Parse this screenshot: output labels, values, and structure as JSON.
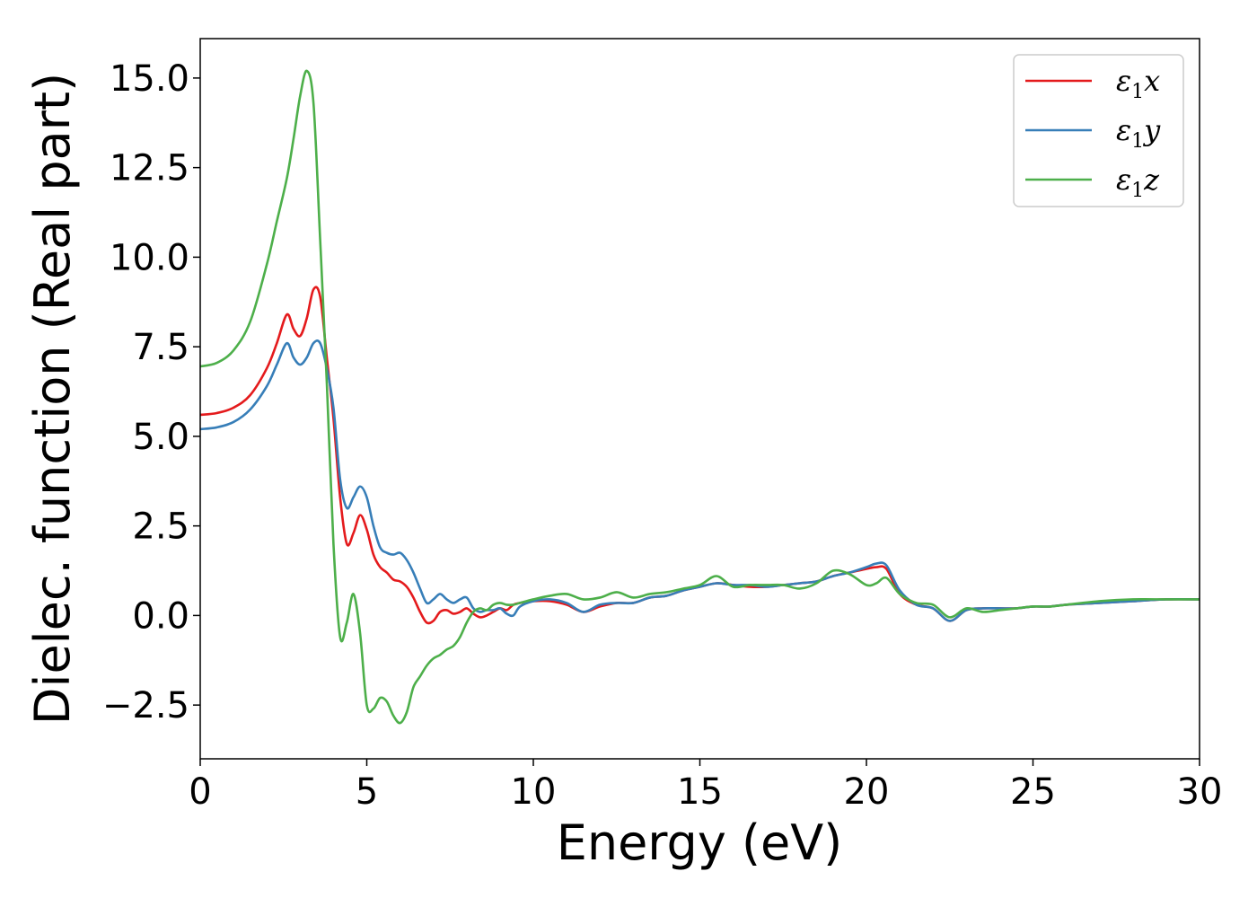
{
  "chart_data": {
    "type": "line",
    "xlabel": "Energy (eV)",
    "ylabel": "Dielec. function (Real part)",
    "xlim": [
      0,
      30
    ],
    "ylim": [
      -4.0,
      16.1
    ],
    "xticks": [
      0,
      5,
      10,
      15,
      20,
      25,
      30
    ],
    "xtick_labels": [
      "0",
      "5",
      "10",
      "15",
      "20",
      "25",
      "30"
    ],
    "yticks": [
      -2.5,
      0.0,
      2.5,
      5.0,
      7.5,
      10.0,
      12.5,
      15.0
    ],
    "ytick_labels": [
      "−2.5",
      "0.0",
      "2.5",
      "5.0",
      "7.5",
      "10.0",
      "12.5",
      "15.0"
    ],
    "grid": false,
    "legend_position": "top-right",
    "series": [
      {
        "name": "ε₁x",
        "legend_base": "ε",
        "legend_sub": "1",
        "legend_var": "x",
        "color": "#e41a1c",
        "x": [
          0,
          0.5,
          1.0,
          1.5,
          2.0,
          2.3,
          2.6,
          2.8,
          3.0,
          3.2,
          3.4,
          3.6,
          3.8,
          4.0,
          4.2,
          4.4,
          4.6,
          4.8,
          5.0,
          5.2,
          5.4,
          5.6,
          5.8,
          6.0,
          6.2,
          6.4,
          6.6,
          6.8,
          7.0,
          7.2,
          7.4,
          7.6,
          7.8,
          8.0,
          8.2,
          8.4,
          8.6,
          8.8,
          9.0,
          9.2,
          9.4,
          9.6,
          10.0,
          10.5,
          11.0,
          11.5,
          12.0,
          12.5,
          13.0,
          13.5,
          14.0,
          14.5,
          15.0,
          15.5,
          16.0,
          16.5,
          17.0,
          17.5,
          18.0,
          18.5,
          19.0,
          19.5,
          20.0,
          20.3,
          20.6,
          21.0,
          21.5,
          22.0,
          22.5,
          23.0,
          23.5,
          24.0,
          24.5,
          25.0,
          25.5,
          26.0,
          27.0,
          28.0,
          29.0,
          30.0
        ],
        "y": [
          5.6,
          5.65,
          5.8,
          6.15,
          6.9,
          7.6,
          8.4,
          8.0,
          7.8,
          8.3,
          9.1,
          8.9,
          7.2,
          5.5,
          3.3,
          2.0,
          2.3,
          2.8,
          2.4,
          1.7,
          1.35,
          1.2,
          1.0,
          0.95,
          0.8,
          0.5,
          0.1,
          -0.2,
          -0.15,
          0.1,
          0.15,
          0.05,
          0.1,
          0.2,
          0.05,
          -0.05,
          0.0,
          0.1,
          0.2,
          0.15,
          0.3,
          0.35,
          0.4,
          0.4,
          0.3,
          0.1,
          0.25,
          0.35,
          0.35,
          0.5,
          0.55,
          0.7,
          0.8,
          0.9,
          0.85,
          0.8,
          0.8,
          0.85,
          0.9,
          0.95,
          1.1,
          1.2,
          1.3,
          1.35,
          1.3,
          0.6,
          0.3,
          0.2,
          -0.15,
          0.15,
          0.2,
          0.2,
          0.2,
          0.25,
          0.25,
          0.3,
          0.35,
          0.4,
          0.45,
          0.45
        ]
      },
      {
        "name": "ε₁y",
        "legend_base": "ε",
        "legend_sub": "1",
        "legend_var": "y",
        "color": "#377eb8",
        "x": [
          0,
          0.5,
          1.0,
          1.5,
          2.0,
          2.3,
          2.6,
          2.8,
          3.0,
          3.2,
          3.4,
          3.6,
          3.8,
          4.0,
          4.2,
          4.4,
          4.6,
          4.8,
          5.0,
          5.2,
          5.4,
          5.6,
          5.8,
          6.0,
          6.2,
          6.4,
          6.6,
          6.8,
          7.0,
          7.2,
          7.4,
          7.6,
          7.8,
          8.0,
          8.2,
          8.4,
          8.6,
          8.8,
          9.0,
          9.2,
          9.4,
          9.6,
          10.0,
          10.5,
          11.0,
          11.5,
          12.0,
          12.5,
          13.0,
          13.5,
          14.0,
          14.5,
          15.0,
          15.5,
          16.0,
          16.5,
          17.0,
          17.5,
          18.0,
          18.5,
          19.0,
          19.5,
          20.0,
          20.3,
          20.6,
          21.0,
          21.5,
          22.0,
          22.5,
          23.0,
          23.5,
          24.0,
          24.5,
          25.0,
          25.5,
          26.0,
          27.0,
          28.0,
          29.0,
          30.0
        ],
        "y": [
          5.2,
          5.25,
          5.4,
          5.75,
          6.4,
          7.0,
          7.6,
          7.2,
          7.0,
          7.2,
          7.6,
          7.6,
          6.9,
          5.8,
          3.8,
          3.0,
          3.3,
          3.6,
          3.3,
          2.5,
          1.9,
          1.75,
          1.7,
          1.75,
          1.55,
          1.2,
          0.75,
          0.35,
          0.45,
          0.6,
          0.45,
          0.35,
          0.45,
          0.5,
          0.2,
          0.1,
          0.15,
          0.15,
          0.2,
          0.05,
          0.0,
          0.25,
          0.4,
          0.45,
          0.35,
          0.1,
          0.3,
          0.35,
          0.35,
          0.5,
          0.55,
          0.7,
          0.8,
          0.9,
          0.85,
          0.85,
          0.8,
          0.85,
          0.9,
          0.95,
          1.1,
          1.2,
          1.35,
          1.45,
          1.4,
          0.7,
          0.3,
          0.2,
          -0.15,
          0.15,
          0.2,
          0.2,
          0.2,
          0.25,
          0.25,
          0.3,
          0.35,
          0.4,
          0.45,
          0.45
        ]
      },
      {
        "name": "ε₁z",
        "legend_base": "ε",
        "legend_sub": "1",
        "legend_var": "z",
        "color": "#4daf4a",
        "x": [
          0,
          0.5,
          1.0,
          1.5,
          2.0,
          2.3,
          2.6,
          2.8,
          3.0,
          3.2,
          3.4,
          3.6,
          3.8,
          4.0,
          4.2,
          4.4,
          4.6,
          4.8,
          5.0,
          5.2,
          5.4,
          5.6,
          5.8,
          6.0,
          6.2,
          6.4,
          6.6,
          6.8,
          7.0,
          7.2,
          7.4,
          7.6,
          7.8,
          8.0,
          8.2,
          8.4,
          8.6,
          8.8,
          9.0,
          9.2,
          9.4,
          9.6,
          10.0,
          10.5,
          11.0,
          11.5,
          12.0,
          12.5,
          13.0,
          13.5,
          14.0,
          14.5,
          15.0,
          15.5,
          16.0,
          16.5,
          17.0,
          17.5,
          18.0,
          18.5,
          19.0,
          19.5,
          20.0,
          20.3,
          20.6,
          21.0,
          21.5,
          22.0,
          22.5,
          23.0,
          23.5,
          24.0,
          24.5,
          25.0,
          25.5,
          26.0,
          27.0,
          28.0,
          29.0,
          30.0
        ],
        "y": [
          6.95,
          7.05,
          7.4,
          8.2,
          9.8,
          11.0,
          12.2,
          13.3,
          14.5,
          15.2,
          14.3,
          10.5,
          6.5,
          2.0,
          -0.6,
          -0.2,
          0.6,
          -0.5,
          -2.5,
          -2.6,
          -2.3,
          -2.4,
          -2.8,
          -3.0,
          -2.7,
          -2.0,
          -1.7,
          -1.4,
          -1.2,
          -1.1,
          -0.95,
          -0.85,
          -0.6,
          -0.2,
          0.1,
          0.2,
          0.15,
          0.3,
          0.35,
          0.3,
          0.3,
          0.35,
          0.45,
          0.55,
          0.6,
          0.45,
          0.5,
          0.65,
          0.5,
          0.6,
          0.65,
          0.75,
          0.85,
          1.1,
          0.8,
          0.85,
          0.85,
          0.85,
          0.75,
          0.9,
          1.25,
          1.15,
          0.85,
          0.9,
          1.05,
          0.6,
          0.35,
          0.3,
          -0.05,
          0.2,
          0.1,
          0.15,
          0.2,
          0.25,
          0.25,
          0.3,
          0.4,
          0.45,
          0.45,
          0.45
        ]
      }
    ]
  }
}
